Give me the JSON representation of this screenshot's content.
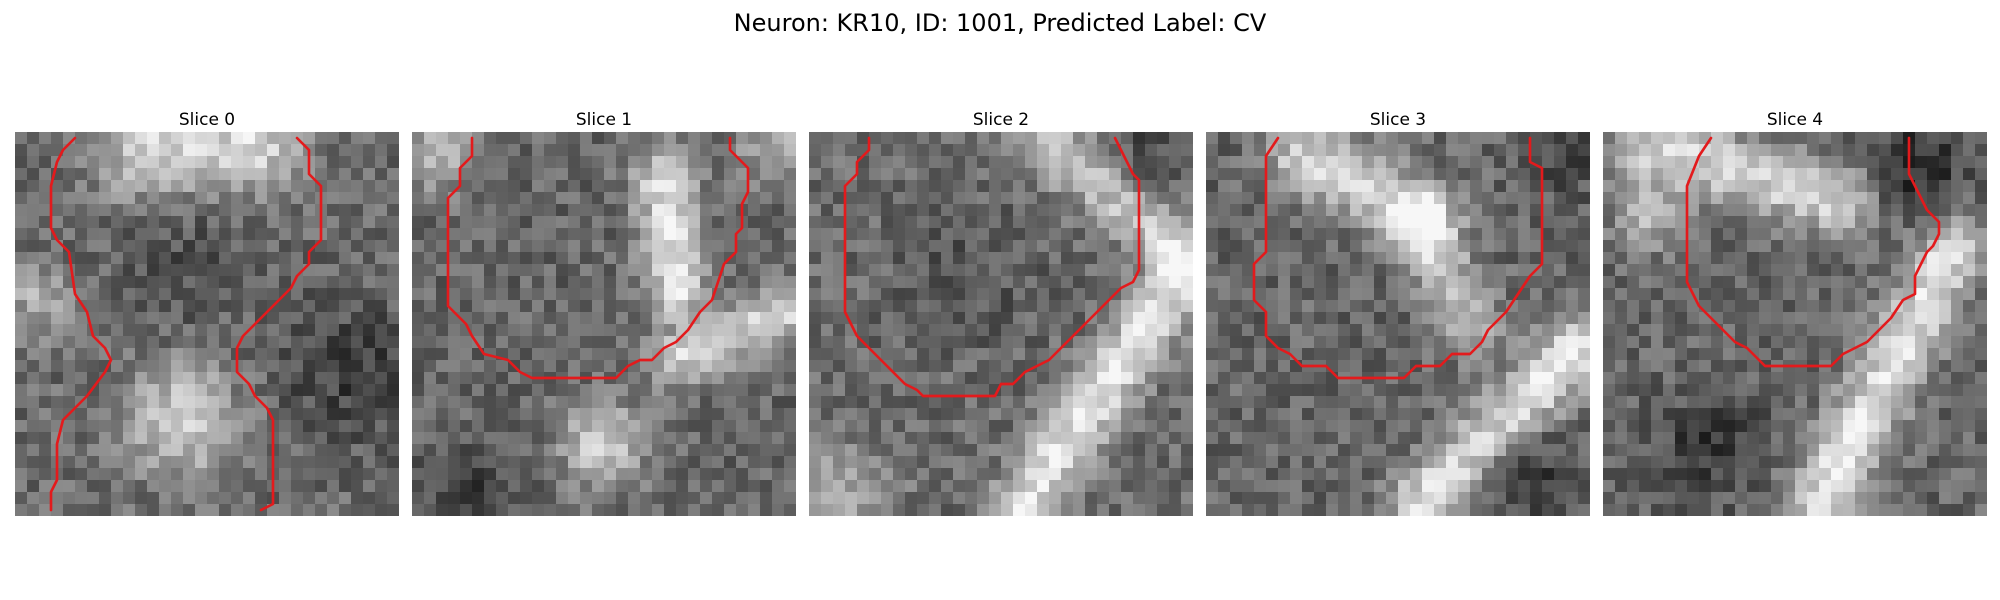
{
  "title": "Neuron: KR10, ID: 1001, Predicted Label: CV",
  "slices": [
    {
      "title": "Slice 0"
    },
    {
      "title": "Slice 1"
    },
    {
      "title": "Slice 2"
    },
    {
      "title": "Slice 3"
    },
    {
      "title": "Slice 4"
    }
  ],
  "contour_color": "#e31a1c"
}
